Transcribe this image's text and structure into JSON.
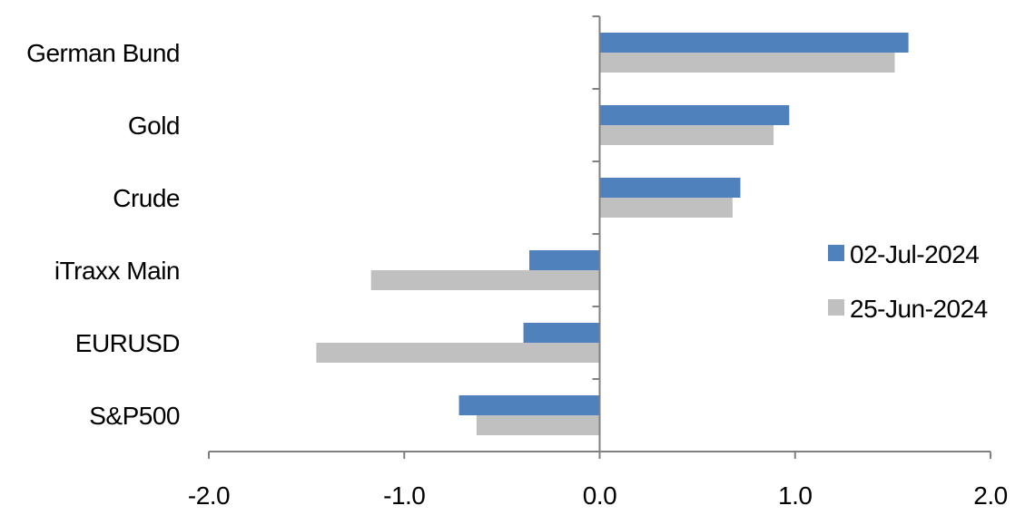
{
  "chart_data": {
    "type": "bar",
    "orientation": "horizontal",
    "categories": [
      "German Bund",
      "Gold",
      "Crude",
      "iTraxx Main",
      "EURUSD",
      "S&P500"
    ],
    "series": [
      {
        "name": "02-Jul-2024",
        "color": "#4f81bd",
        "values": [
          1.58,
          0.97,
          0.72,
          -0.36,
          -0.39,
          -0.72
        ]
      },
      {
        "name": "25-Jun-2024",
        "color": "#c0c0c0",
        "values": [
          1.51,
          0.89,
          0.68,
          -1.17,
          -1.45,
          -0.63
        ]
      }
    ],
    "xlim": [
      -2.0,
      2.0
    ],
    "xticks": [
      "-2.0",
      "-1.0",
      "0.0",
      "1.0",
      "2.0"
    ],
    "xtick_values": [
      -2,
      -1,
      0,
      1,
      2
    ],
    "grid": false,
    "legend_position": "right"
  }
}
